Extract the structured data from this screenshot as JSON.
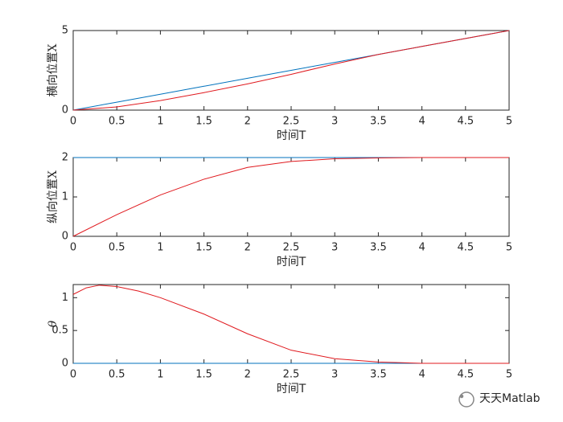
{
  "chart_data": [
    {
      "type": "line",
      "xlabel": "时间T",
      "ylabel": "横向位置X",
      "x": [
        0,
        0.5,
        1,
        1.5,
        2,
        2.5,
        3,
        3.5,
        4,
        4.5,
        5
      ],
      "series": [
        {
          "color": "#0072bd",
          "values": [
            0,
            0.5,
            1,
            1.5,
            2,
            2.5,
            3,
            3.5,
            4,
            4.5,
            5
          ]
        },
        {
          "color": "#e0191e",
          "values": [
            0,
            0.2,
            0.6,
            1.1,
            1.65,
            2.25,
            2.9,
            3.5,
            4.0,
            4.5,
            5
          ]
        }
      ],
      "xlim": [
        0,
        5
      ],
      "ylim": [
        0,
        5
      ],
      "xticks": [
        0,
        0.5,
        1,
        1.5,
        2,
        2.5,
        3,
        3.5,
        4,
        4.5,
        5
      ],
      "yticks": [
        0,
        5
      ]
    },
    {
      "type": "line",
      "xlabel": "时间T",
      "ylabel": "纵向位置X",
      "x": [
        0,
        0.5,
        1,
        1.5,
        2,
        2.5,
        3,
        3.5,
        4,
        4.5,
        5
      ],
      "series": [
        {
          "color": "#0072bd",
          "values": [
            2,
            2,
            2,
            2,
            2,
            2,
            2,
            2,
            2,
            2,
            2
          ]
        },
        {
          "color": "#e0191e",
          "values": [
            0,
            0.55,
            1.05,
            1.45,
            1.75,
            1.9,
            1.97,
            1.99,
            2,
            2,
            2
          ]
        }
      ],
      "xlim": [
        0,
        5
      ],
      "ylim": [
        0,
        2
      ],
      "xticks": [
        0,
        0.5,
        1,
        1.5,
        2,
        2.5,
        3,
        3.5,
        4,
        4.5,
        5
      ],
      "yticks": [
        0,
        1,
        2
      ]
    },
    {
      "type": "line",
      "xlabel": "时间T",
      "ylabel": "θ",
      "x": [
        0,
        0.15,
        0.3,
        0.5,
        0.75,
        1,
        1.5,
        2,
        2.5,
        3,
        3.5,
        4,
        4.5,
        5
      ],
      "series": [
        {
          "color": "#0072bd",
          "values": [
            0,
            0,
            0,
            0,
            0,
            0,
            0,
            0,
            0,
            0,
            0,
            0,
            0,
            0
          ]
        },
        {
          "color": "#e0191e",
          "values": [
            1.05,
            1.15,
            1.19,
            1.17,
            1.1,
            1.0,
            0.75,
            0.45,
            0.2,
            0.07,
            0.02,
            0.0,
            0.0,
            0.0
          ]
        }
      ],
      "xlim": [
        0,
        5
      ],
      "ylim": [
        0,
        1.2
      ],
      "xticks": [
        0,
        0.5,
        1,
        1.5,
        2,
        2.5,
        3,
        3.5,
        4,
        4.5,
        5
      ],
      "yticks": [
        0,
        0.5,
        1
      ]
    }
  ],
  "watermark": "天天Matlab"
}
